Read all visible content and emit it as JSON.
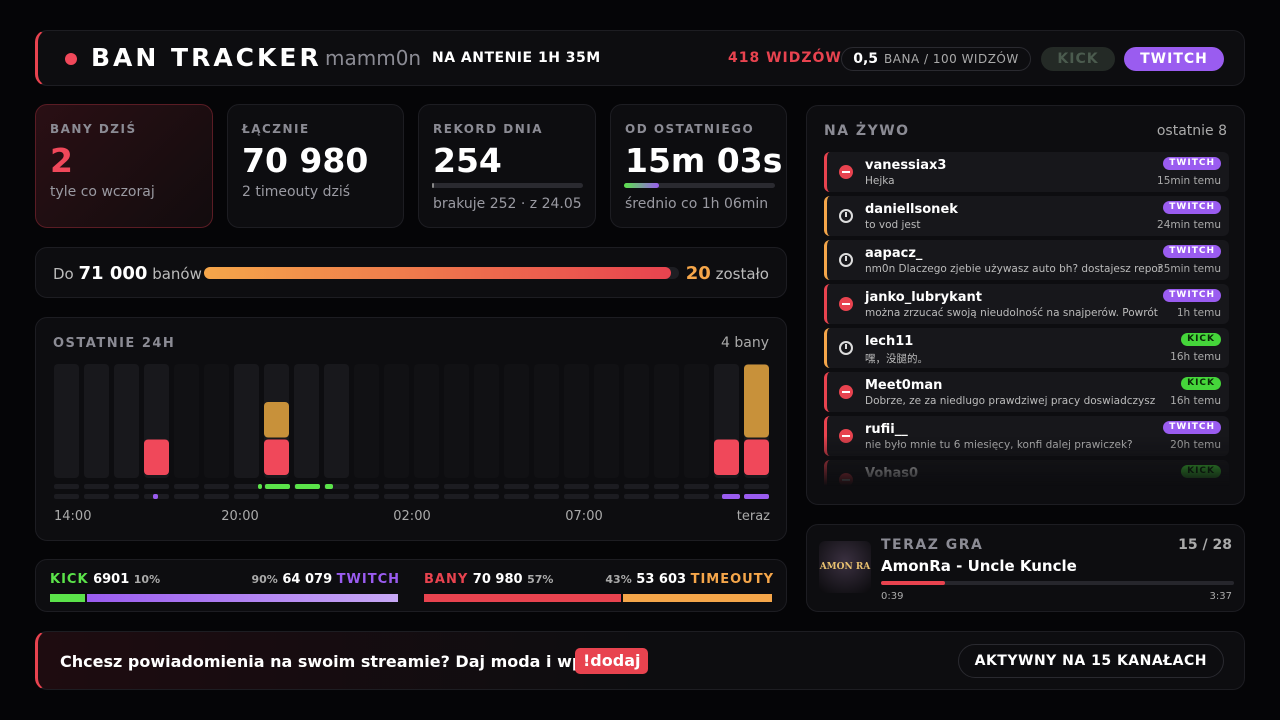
{
  "header": {
    "title": "BAN TRACKER",
    "streamer": "mamm0n",
    "status": "NA ANTENIE 1H 35M",
    "viewers": "418 WIDZÓW",
    "rate_value": "0,5",
    "rate_label": "BANA / 100 WIDZÓW",
    "kick": "KICK",
    "twitch": "TWITCH"
  },
  "stats": [
    {
      "label": "BANY DZIŚ",
      "value": "2",
      "sub": "tyle co wczoraj"
    },
    {
      "label": "ŁĄCZNIE",
      "value": "70 980",
      "sub": "2 timeouty dziś"
    },
    {
      "label": "REKORD DNIA",
      "value": "254",
      "sub": "brakuje 252 · z 24.05"
    },
    {
      "label": "OD OSTATNIEGO",
      "value": "15m 03s",
      "sub": "średnio co 1h 06min"
    }
  ],
  "goal": {
    "prefix": "Do",
    "target": "71 000",
    "suffix": "banów",
    "left_value": "20",
    "left_label": "zostało"
  },
  "hourly": {
    "title": "OSTATNIE 24H",
    "summary": "4 bany",
    "x_labels": [
      "14:00",
      "20:00",
      "02:00",
      "07:00",
      "teraz"
    ],
    "bans": [
      0,
      0,
      0,
      1,
      0,
      0,
      0,
      1,
      0,
      0,
      0,
      0,
      0,
      0,
      0,
      0,
      0,
      0,
      0,
      0,
      0,
      0,
      1,
      1
    ],
    "timeouts": [
      0,
      0,
      0,
      0,
      0,
      0,
      0,
      1,
      0,
      0,
      0,
      0,
      0,
      0,
      0,
      0,
      0,
      0,
      0,
      0,
      0,
      0,
      0,
      2
    ]
  },
  "platform_split": {
    "kick_label": "KICK",
    "kick_count": "6901",
    "kick_pct": {
      "value": 10,
      "label": "10%"
    },
    "twitch_pct": {
      "value": 90,
      "label": "90%"
    },
    "twitch_count": "64 079",
    "twitch_label": "TWITCH"
  },
  "type_split": {
    "bans_label": "BANY",
    "bans_count": "70 980",
    "bans_pct": {
      "value": 57,
      "label": "57%"
    },
    "timeouts_pct": {
      "value": 43,
      "label": "43%"
    },
    "timeouts_count": "53 603",
    "timeouts_label": "TIMEOUTY"
  },
  "live": {
    "title": "NA ŻYWO",
    "count": "ostatnie 8",
    "items": [
      {
        "user": "vanessiax3",
        "message": "Hejka",
        "platform": "TWITCH",
        "time": "15min temu",
        "kind": "ban"
      },
      {
        "user": "daniellsonek",
        "message": "to vod jest",
        "platform": "TWITCH",
        "time": "24min temu",
        "kind": "timeout"
      },
      {
        "user": "aapacz_",
        "message": "nm0n Dlaczego zjebie używasz auto bh? dostajesz repor",
        "platform": "TWITCH",
        "time": "35min temu",
        "kind": "timeout"
      },
      {
        "user": "janko_lubrykant",
        "message": "można zrzucać swoją nieudolność na snajperów. Powrót",
        "platform": "TWITCH",
        "time": "1h temu",
        "kind": "ban"
      },
      {
        "user": "lech11",
        "message": "嘿，没腿的。",
        "platform": "KICK",
        "time": "16h temu",
        "kind": "timeout"
      },
      {
        "user": "Meet0man",
        "message": "Dobrze, ze za niedlugo prawdziwej pracy doswiadczysz",
        "platform": "KICK",
        "time": "16h temu",
        "kind": "ban"
      },
      {
        "user": "rufii__",
        "message": "nie było mnie tu 6 miesięcy, konfi dalej prawiczek?",
        "platform": "TWITCH",
        "time": "20h temu",
        "kind": "ban"
      },
      {
        "user": "Vohas0",
        "platform": "KICK",
        "kind": "ban"
      }
    ]
  },
  "now_playing": {
    "title": "TERAZ GRA",
    "position": "15 / 28",
    "track": "AmonRa - Uncle Kuncle",
    "cover": "AMON RA",
    "elapsed": "0:39",
    "duration": "3:37"
  },
  "footer": {
    "text": "Chcesz powiadomienia na swoim streamie? Daj moda i wpisz",
    "command": "!dodaj",
    "channels": "AKTYWNY NA 15 KANAŁACH"
  }
}
